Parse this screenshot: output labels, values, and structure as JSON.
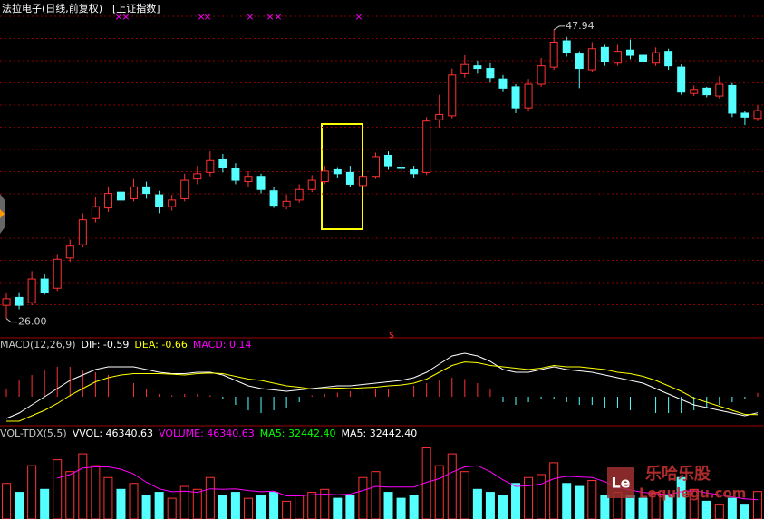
{
  "chart_data": [
    {
      "type": "candlestick",
      "title": "法拉电子(日线,前复权)",
      "subtitle": "[上证指数]",
      "open": [
        27.0,
        27.6,
        27.2,
        29.0,
        28.3,
        30.6,
        31.6,
        33.6,
        34.4,
        35.6,
        35.1,
        36.0,
        35.4,
        34.5,
        35.1,
        36.6,
        37.1,
        38.1,
        37.4,
        36.4,
        36.8,
        35.7,
        34.5,
        35.0,
        35.8,
        36.4,
        37.3,
        37.1,
        36.1,
        36.8,
        38.4,
        37.5,
        37.3,
        37.1,
        41.1,
        41.4,
        44.6,
        45.2,
        45.0,
        44.2,
        43.6,
        42.0,
        43.8,
        45.1,
        47.1,
        46.1,
        44.9,
        46.6,
        45.4,
        46.4,
        46.0,
        45.4,
        46.3,
        45.1,
        43.1,
        43.5,
        42.9,
        43.7,
        41.6,
        41.2
      ],
      "high": [
        27.9,
        28.0,
        29.6,
        29.4,
        30.9,
        32.0,
        34.0,
        35.2,
        36.0,
        36.0,
        36.6,
        36.4,
        35.7,
        35.4,
        37.0,
        37.6,
        38.7,
        38.5,
        37.8,
        37.2,
        37.0,
        36.0,
        35.4,
        36.2,
        36.9,
        37.6,
        37.5,
        37.6,
        38.0,
        38.6,
        38.7,
        38.0,
        37.6,
        41.3,
        43.0,
        45.0,
        46.0,
        45.6,
        45.4,
        44.5,
        43.8,
        44.2,
        45.8,
        47.94,
        47.4,
        46.3,
        47.0,
        46.8,
        46.8,
        47.2,
        46.2,
        46.6,
        46.5,
        45.3,
        43.7,
        43.6,
        44.4,
        43.9,
        41.8,
        42.2
      ],
      "low": [
        26.0,
        26.7,
        27.0,
        27.8,
        28.1,
        30.3,
        31.4,
        33.3,
        34.1,
        34.7,
        34.9,
        35.1,
        34.0,
        34.2,
        34.9,
        36.2,
        36.8,
        37.1,
        36.2,
        36.0,
        35.5,
        34.4,
        34.3,
        34.8,
        35.6,
        36.2,
        36.7,
        36.0,
        35.2,
        36.6,
        37.3,
        37.0,
        36.7,
        36.9,
        40.5,
        41.2,
        44.3,
        44.6,
        44.0,
        43.2,
        41.6,
        41.8,
        43.6,
        44.9,
        45.9,
        43.5,
        44.7,
        45.2,
        45.2,
        45.7,
        45.1,
        45.2,
        44.9,
        43.0,
        42.9,
        42.8,
        42.7,
        41.3,
        40.7,
        41.0
      ],
      "close": [
        27.5,
        27.0,
        29.0,
        28.0,
        30.5,
        31.5,
        33.5,
        34.5,
        35.5,
        35.0,
        36.0,
        35.5,
        34.5,
        35.0,
        36.5,
        37.0,
        38.0,
        37.5,
        36.5,
        36.8,
        35.8,
        34.6,
        34.9,
        35.8,
        36.5,
        37.2,
        37.0,
        36.2,
        36.8,
        38.3,
        37.6,
        37.4,
        37.0,
        41.0,
        41.5,
        44.5,
        45.3,
        45.0,
        44.3,
        43.5,
        42.0,
        43.8,
        45.2,
        47.0,
        46.2,
        45.0,
        46.5,
        45.5,
        46.3,
        46.0,
        45.5,
        46.2,
        45.2,
        43.2,
        43.4,
        43.0,
        43.8,
        41.6,
        41.3,
        41.8
      ],
      "up_color": "#ff3232",
      "down_color": "#54ffff",
      "ylim": [
        24.6,
        50.2
      ],
      "grid": true,
      "annotations": [
        "47.94",
        "26.00"
      ],
      "signal_mark": "×",
      "special_mark": "$"
    },
    {
      "type": "macd",
      "readouts": [
        {
          "text": "MACD(12,26,9)",
          "color": "#c8c8c8"
        },
        {
          "text": "DIF: -0.59",
          "color": "#ffffff"
        },
        {
          "text": "DEA: -0.66",
          "color": "#ffff00"
        },
        {
          "text": "MACD: 0.14",
          "color": "#ff00ff"
        }
      ],
      "ylim": [
        -1.0,
        2.0
      ],
      "histogram": [
        0.3,
        0.6,
        0.8,
        1.0,
        1.1,
        1.1,
        1.0,
        0.9,
        0.8,
        0.6,
        0.5,
        0.3,
        0.1,
        0.05,
        0.1,
        0.1,
        0.05,
        -0.1,
        -0.3,
        -0.5,
        -0.6,
        -0.5,
        -0.4,
        -0.2,
        0.05,
        0.1,
        0.15,
        0.2,
        0.25,
        0.3,
        0.3,
        0.35,
        0.4,
        0.5,
        0.6,
        0.7,
        0.65,
        0.5,
        0.3,
        -0.2,
        -0.3,
        -0.2,
        -0.1,
        -0.1,
        -0.2,
        -0.3,
        -0.3,
        -0.4,
        -0.4,
        -0.5,
        -0.5,
        -0.6,
        -0.6,
        -0.6,
        -0.5,
        -0.4,
        -0.3,
        -0.2,
        -0.1,
        0.14
      ],
      "series": [
        {
          "color": "#ffffff",
          "values": [
            -0.8,
            -0.6,
            -0.3,
            0.0,
            0.3,
            0.6,
            0.8,
            1.0,
            1.1,
            1.1,
            1.1,
            1.0,
            0.9,
            0.85,
            0.85,
            0.9,
            0.9,
            0.8,
            0.6,
            0.4,
            0.3,
            0.25,
            0.2,
            0.25,
            0.3,
            0.35,
            0.4,
            0.4,
            0.45,
            0.5,
            0.55,
            0.6,
            0.7,
            0.9,
            1.2,
            1.5,
            1.6,
            1.5,
            1.3,
            1.0,
            0.9,
            0.9,
            1.0,
            1.1,
            1.0,
            0.95,
            0.9,
            0.8,
            0.7,
            0.6,
            0.5,
            0.3,
            0.1,
            -0.1,
            -0.3,
            -0.4,
            -0.5,
            -0.6,
            -0.7,
            -0.59
          ]
        },
        {
          "color": "#ffff00",
          "values": [
            -0.9,
            -0.9,
            -0.7,
            -0.5,
            -0.25,
            0.05,
            0.3,
            0.55,
            0.7,
            0.8,
            0.85,
            0.85,
            0.85,
            0.83,
            0.8,
            0.85,
            0.87,
            0.85,
            0.75,
            0.65,
            0.6,
            0.5,
            0.4,
            0.35,
            0.28,
            0.3,
            0.32,
            0.3,
            0.33,
            0.35,
            0.4,
            0.43,
            0.5,
            0.65,
            0.9,
            1.15,
            1.28,
            1.25,
            1.15,
            1.1,
            1.05,
            1.0,
            1.05,
            1.15,
            1.1,
            1.1,
            1.05,
            1.0,
            0.9,
            0.85,
            0.75,
            0.6,
            0.4,
            0.2,
            -0.05,
            -0.2,
            -0.35,
            -0.5,
            -0.65,
            -0.66
          ]
        }
      ]
    },
    {
      "type": "volume",
      "readouts": [
        {
          "text": "VOL-TDX(5,5)",
          "color": "#c8c8c8"
        },
        {
          "text": "VVOL: 46340.63",
          "color": "#ffffff"
        },
        {
          "text": "VOLUME: 46340.63",
          "color": "#ff00ff"
        },
        {
          "text": "MA5: 32442.40",
          "color": "#00ff00"
        },
        {
          "text": "MA5: 32442.40",
          "color": "#ffffff"
        }
      ],
      "ylim": [
        0,
        130000
      ],
      "values": [
        60000,
        45000,
        90000,
        50000,
        100000,
        80000,
        110000,
        90000,
        70000,
        50000,
        60000,
        40000,
        45000,
        35000,
        55000,
        50000,
        70000,
        40000,
        45000,
        35000,
        40000,
        45000,
        30000,
        40000,
        45000,
        50000,
        35000,
        40000,
        70000,
        80000,
        45000,
        35000,
        40000,
        120000,
        90000,
        110000,
        80000,
        50000,
        45000,
        40000,
        60000,
        70000,
        75000,
        95000,
        60000,
        55000,
        65000,
        40000,
        45000,
        40000,
        35000,
        45000,
        40000,
        70000,
        50000,
        30000,
        25000,
        35000,
        25000,
        46340.63
      ],
      "ma5": {
        "color": "#ff00ff",
        "values": [
          null,
          null,
          null,
          null,
          69000,
          75000,
          86000,
          88000,
          88000,
          84000,
          76000,
          62000,
          51000,
          46000,
          47000,
          45000,
          51000,
          50000,
          51000,
          48000,
          46000,
          47000,
          39000,
          39000,
          41000,
          42000,
          41000,
          42000,
          48000,
          55000,
          54000,
          54000,
          54000,
          62000,
          68000,
          79000,
          88000,
          90000,
          80000,
          66000,
          55000,
          56000,
          59000,
          68000,
          72000,
          71000,
          70000,
          63000,
          53000,
          49000,
          45000,
          43000,
          41000,
          46000,
          48000,
          44000,
          41000,
          37000,
          34000,
          32442.4
        ]
      }
    }
  ],
  "watermark": {
    "logo": "Le",
    "title": "乐哈乐股",
    "url": "Lequlegu.com"
  }
}
